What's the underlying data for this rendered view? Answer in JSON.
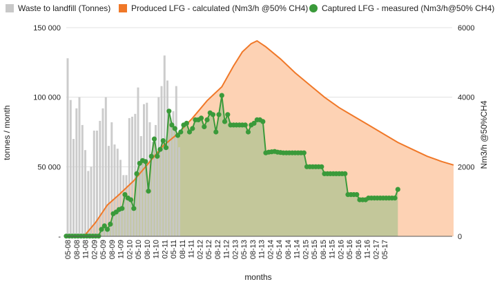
{
  "chart_data": {
    "type": "combo",
    "xlabel": "months",
    "ylabel_left": "tonnes / month",
    "ylabel_right": "Nm3/h @50%CH4",
    "ylim_left": [
      0,
      150000
    ],
    "ylim_right": [
      0,
      6000
    ],
    "y_ticks_left": [
      {
        "value": 0,
        "label": "-"
      },
      {
        "value": 50000,
        "label": "50 000"
      },
      {
        "value": 100000,
        "label": "100 000"
      },
      {
        "value": 150000,
        "label": "150 000"
      }
    ],
    "y_ticks_right": [
      {
        "value": 0,
        "label": "0"
      },
      {
        "value": 2000,
        "label": "2000"
      },
      {
        "value": 4000,
        "label": "4000"
      },
      {
        "value": 6000,
        "label": "6000"
      }
    ],
    "x_tick_labels": [
      "05-08",
      "08-08",
      "11-08",
      "02-09",
      "05-09",
      "08-09",
      "11-09",
      "02-10",
      "05-10",
      "08-10",
      "11-10",
      "02-11",
      "05-11",
      "08-11",
      "11-11",
      "02-12",
      "05-12",
      "08-12",
      "11-12",
      "02-13",
      "05-13",
      "08-13",
      "11-13",
      "02-14",
      "05-14",
      "08-14",
      "11-14",
      "02-15",
      "05-15",
      "08-15",
      "11-15",
      "02-16",
      "05-16",
      "08-16",
      "11-16",
      "02-17",
      "05-17"
    ],
    "legend": [
      {
        "key": "waste",
        "label": "Waste to landfill (Tonnes)",
        "color": "#c8c8c8",
        "marker": "square"
      },
      {
        "key": "produced",
        "label": "Produced LFG - calculated (Nm3/h @50% CH4)",
        "color": "#f07828",
        "marker": "square"
      },
      {
        "key": "captured",
        "label": "Captured LFG - measured (Nm3/h@50% CH4)",
        "color": "#3a9a3a",
        "marker": "circle"
      }
    ],
    "colors": {
      "waste_bar": "#c8c8c8",
      "produced_line": "#f07828",
      "produced_fill": "#fdd2b4",
      "captured_line": "#3a9a3a",
      "captured_fill": "#c3c79a",
      "grid": "#e0e0e0"
    },
    "series": [
      {
        "name": "Waste to landfill (Tonnes)",
        "type": "bar",
        "axis": "left",
        "values": [
          128000,
          98000,
          70000,
          92000,
          100000,
          80000,
          62000,
          47000,
          50000,
          76000,
          76000,
          83000,
          92000,
          100000,
          65000,
          82000,
          66000,
          63000,
          55000,
          44000,
          44000,
          85000,
          86000,
          88000,
          107000,
          72000,
          95000,
          96000,
          82000,
          68000,
          80000,
          100000,
          108000,
          130000,
          112000,
          85000,
          90000,
          108000,
          64000
        ]
      },
      {
        "name": "Produced LFG - calculated (Nm3/h @50% CH4)",
        "type": "area",
        "axis": "right",
        "points": [
          [
            0,
            0
          ],
          [
            6,
            0
          ],
          [
            10,
            400
          ],
          [
            14,
            900
          ],
          [
            18,
            1200
          ],
          [
            23,
            1600
          ],
          [
            28,
            2100
          ],
          [
            33,
            2600
          ],
          [
            38,
            2950
          ],
          [
            43,
            3400
          ],
          [
            48,
            3900
          ],
          [
            53,
            4300
          ],
          [
            57,
            4900
          ],
          [
            60,
            5300
          ],
          [
            63,
            5540
          ],
          [
            65,
            5620
          ],
          [
            68,
            5450
          ],
          [
            73,
            5100
          ],
          [
            78,
            4700
          ],
          [
            83,
            4350
          ],
          [
            88,
            4000
          ],
          [
            93,
            3700
          ],
          [
            98,
            3450
          ],
          [
            103,
            3200
          ],
          [
            108,
            2950
          ],
          [
            113,
            2700
          ],
          [
            118,
            2500
          ],
          [
            123,
            2300
          ],
          [
            128,
            2150
          ],
          [
            132,
            2050
          ]
        ]
      },
      {
        "name": "Captured LFG - measured (Nm3/h@50% CH4)",
        "type": "line",
        "axis": "right",
        "values": [
          [
            0,
            5
          ],
          [
            1,
            5
          ],
          [
            2,
            5
          ],
          [
            3,
            5
          ],
          [
            4,
            5
          ],
          [
            5,
            5
          ],
          [
            6,
            5
          ],
          [
            7,
            5
          ],
          [
            8,
            5
          ],
          [
            9,
            5
          ],
          [
            10,
            5
          ],
          [
            11,
            5
          ],
          [
            12,
            200
          ],
          [
            13,
            300
          ],
          [
            14,
            200
          ],
          [
            15,
            350
          ],
          [
            16,
            650
          ],
          [
            17,
            700
          ],
          [
            18,
            770
          ],
          [
            19,
            800
          ],
          [
            20,
            1200
          ],
          [
            21,
            1100
          ],
          [
            22,
            1050
          ],
          [
            23,
            800
          ],
          [
            24,
            1800
          ],
          [
            25,
            2100
          ],
          [
            26,
            2180
          ],
          [
            27,
            2150
          ],
          [
            28,
            1300
          ],
          [
            29,
            2300
          ],
          [
            30,
            2800
          ],
          [
            31,
            2300
          ],
          [
            32,
            2500
          ],
          [
            33,
            2750
          ],
          [
            34,
            2550
          ],
          [
            35,
            3600
          ],
          [
            36,
            3200
          ],
          [
            37,
            3100
          ],
          [
            38,
            2900
          ],
          [
            39,
            3000
          ],
          [
            40,
            3200
          ],
          [
            41,
            3250
          ],
          [
            42,
            3000
          ],
          [
            43,
            3100
          ],
          [
            44,
            3350
          ],
          [
            45,
            3350
          ],
          [
            46,
            3400
          ],
          [
            47,
            3150
          ],
          [
            48,
            3350
          ],
          [
            49,
            3550
          ],
          [
            50,
            3500
          ],
          [
            51,
            3000
          ],
          [
            52,
            3500
          ],
          [
            53,
            4050
          ],
          [
            54,
            3300
          ],
          [
            55,
            3500
          ],
          [
            56,
            3200
          ],
          [
            57,
            3200
          ],
          [
            58,
            3200
          ],
          [
            59,
            3200
          ],
          [
            60,
            3200
          ],
          [
            61,
            3200
          ],
          [
            62,
            3000
          ],
          [
            63,
            3200
          ],
          [
            64,
            3250
          ],
          [
            65,
            3350
          ],
          [
            66,
            3350
          ],
          [
            67,
            3300
          ],
          [
            68,
            2400
          ],
          [
            69,
            2420
          ],
          [
            70,
            2430
          ],
          [
            71,
            2440
          ],
          [
            72,
            2420
          ],
          [
            73,
            2410
          ],
          [
            74,
            2400
          ],
          [
            75,
            2400
          ],
          [
            76,
            2400
          ],
          [
            77,
            2400
          ],
          [
            78,
            2400
          ],
          [
            79,
            2400
          ],
          [
            80,
            2400
          ],
          [
            81,
            2400
          ],
          [
            82,
            2000
          ],
          [
            83,
            2000
          ],
          [
            84,
            2000
          ],
          [
            85,
            2000
          ],
          [
            86,
            2000
          ],
          [
            87,
            2000
          ],
          [
            88,
            1800
          ],
          [
            89,
            1800
          ],
          [
            90,
            1800
          ],
          [
            91,
            1800
          ],
          [
            92,
            1800
          ],
          [
            93,
            1800
          ],
          [
            94,
            1800
          ],
          [
            95,
            1800
          ],
          [
            96,
            1200
          ],
          [
            97,
            1200
          ],
          [
            98,
            1200
          ],
          [
            99,
            1200
          ],
          [
            100,
            1050
          ],
          [
            101,
            1050
          ],
          [
            102,
            1050
          ],
          [
            103,
            1100
          ],
          [
            104,
            1100
          ],
          [
            105,
            1100
          ],
          [
            106,
            1100
          ],
          [
            107,
            1100
          ],
          [
            108,
            1100
          ],
          [
            109,
            1100
          ],
          [
            110,
            1100
          ],
          [
            111,
            1100
          ],
          [
            112,
            1100
          ],
          [
            113,
            1350
          ]
        ]
      }
    ]
  }
}
